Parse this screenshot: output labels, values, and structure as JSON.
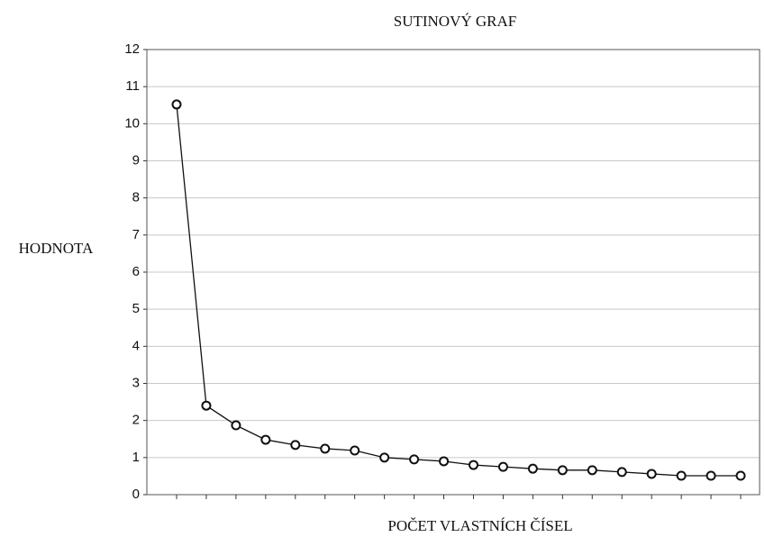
{
  "chart_data": {
    "type": "line",
    "title": "SUTINOVÝ GRAF",
    "x_label": "POČET VLASTNÍCH ČÍSEL",
    "y_label": "HODNOTA",
    "categories": [
      null,
      null,
      null,
      null,
      null,
      null,
      null,
      null,
      null,
      null,
      null,
      null,
      null,
      null,
      null,
      null,
      null,
      null,
      null,
      null
    ],
    "values": [
      10.52,
      2.4,
      1.87,
      1.48,
      1.34,
      1.24,
      1.19,
      1.0,
      0.95,
      0.9,
      0.8,
      0.75,
      0.7,
      0.66,
      0.66,
      0.61,
      0.56,
      0.51,
      0.51,
      0.51
    ],
    "color": "#111111",
    "ylim": [
      0,
      12
    ],
    "yticks": [
      0,
      1,
      2,
      3,
      4,
      5,
      6,
      7,
      8,
      9,
      10,
      11,
      12
    ],
    "grid": true
  }
}
